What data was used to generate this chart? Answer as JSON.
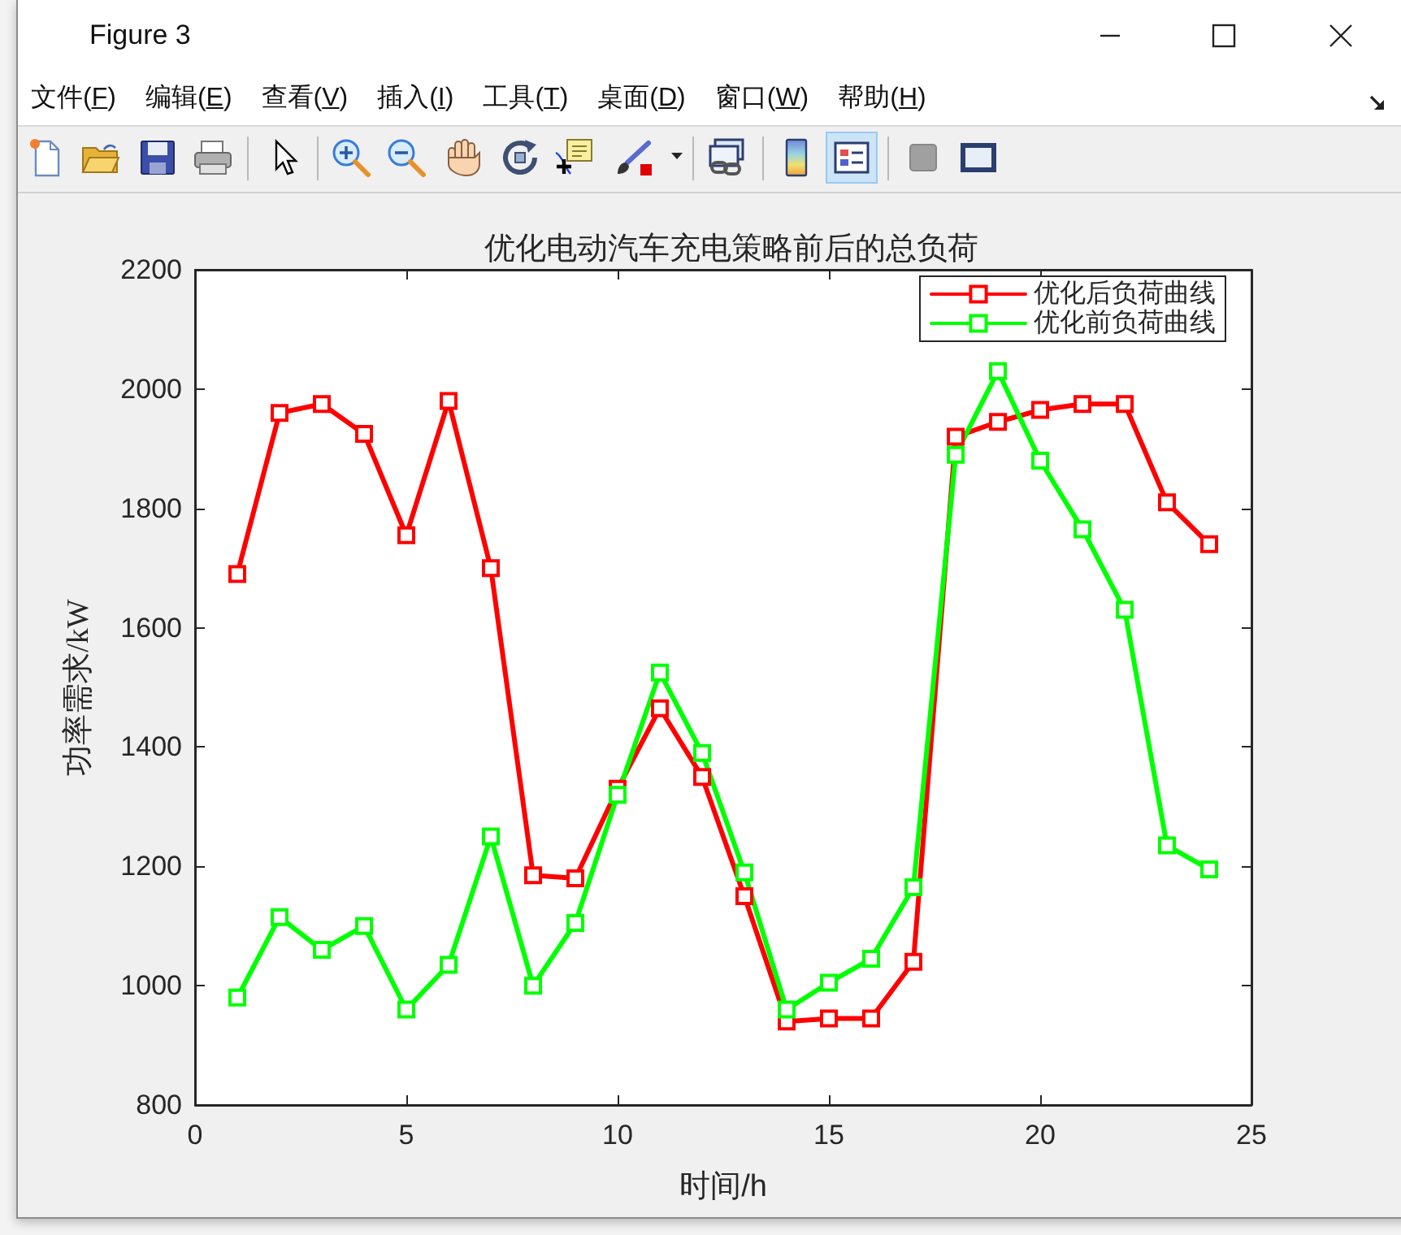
{
  "chart_data": {
    "type": "line",
    "title": "优化电动汽车充电策略前后的总负荷",
    "xlabel": "时间/h",
    "ylabel": "功率需求/kW",
    "x": [
      1,
      2,
      3,
      4,
      5,
      6,
      7,
      8,
      9,
      10,
      11,
      12,
      13,
      14,
      15,
      16,
      17,
      18,
      19,
      20,
      21,
      22,
      23,
      24
    ],
    "series": [
      {
        "name": "优化后负荷曲线",
        "color": "#ff0000",
        "values": [
          1690,
          1960,
          1975,
          1925,
          1755,
          1980,
          1700,
          1185,
          1180,
          1330,
          1465,
          1350,
          1150,
          940,
          945,
          945,
          1040,
          1920,
          1945,
          1965,
          1975,
          1975,
          1810,
          1740
        ]
      },
      {
        "name": "优化前负荷曲线",
        "color": "#00ff00",
        "values": [
          980,
          1115,
          1060,
          1100,
          960,
          1035,
          1250,
          1000,
          1105,
          1320,
          1525,
          1390,
          1190,
          960,
          1005,
          1045,
          1165,
          1890,
          2030,
          1880,
          1765,
          1630,
          1235,
          1195
        ]
      }
    ],
    "xlim": [
      0,
      25
    ],
    "xticks": [
      0,
      5,
      10,
      15,
      20,
      25
    ],
    "ylim": [
      800,
      2200
    ],
    "yticks": [
      800,
      1000,
      1200,
      1400,
      1600,
      1800,
      2000,
      2200
    ],
    "legend": "top right",
    "marker": "square",
    "line_style": "solid",
    "annotations": [
      "Figure 3",
      "文件(F)",
      "编辑(E)",
      "查看(V)",
      "插入(I)",
      "工具(T)",
      "桌面(D)",
      "窗口(W)",
      "帮助(H)"
    ]
  }
}
